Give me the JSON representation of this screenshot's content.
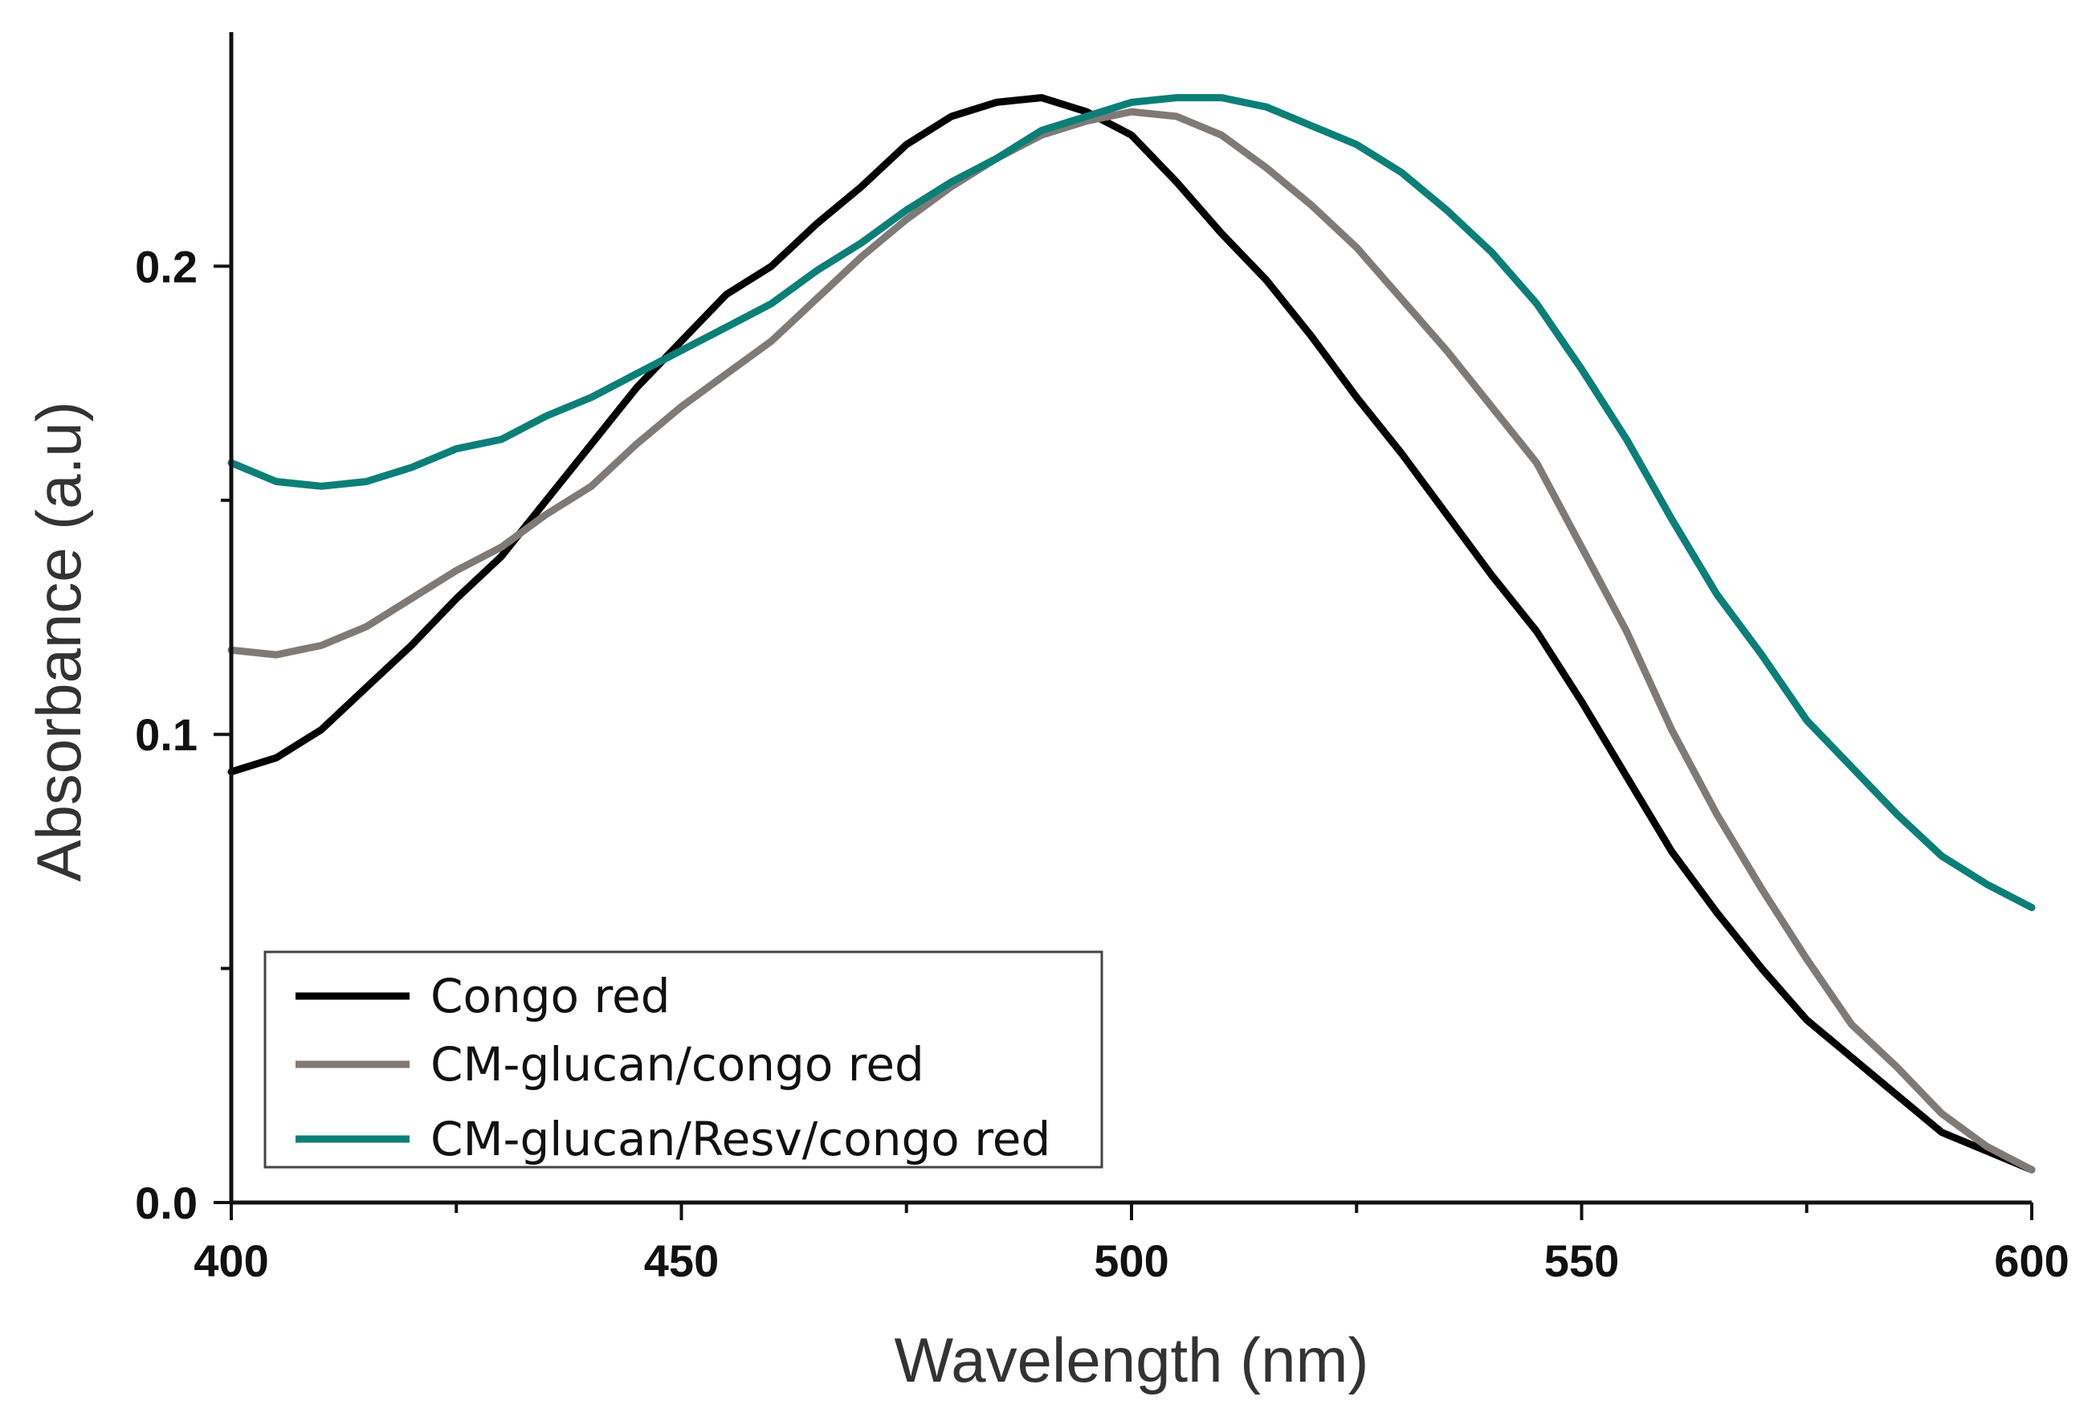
{
  "chart_data": {
    "type": "line",
    "title": "",
    "xlabel": "Wavelength (nm)",
    "ylabel": "Absorbance (a.u)",
    "xlim": [
      400,
      600
    ],
    "ylim": [
      0.0,
      0.25
    ],
    "x_ticks": [
      400,
      450,
      500,
      550,
      600
    ],
    "x_tick_labels": [
      "400",
      "450",
      "500",
      "550",
      "600"
    ],
    "y_ticks": [
      0.0,
      0.1,
      0.2
    ],
    "y_tick_labels": [
      "0.0",
      "0.1",
      "0.2"
    ],
    "grid": false,
    "legend_position": "bottom-left",
    "series": [
      {
        "name": "Congo red",
        "color": "#000000",
        "x": [
          400,
          405,
          410,
          415,
          420,
          425,
          430,
          435,
          440,
          445,
          450,
          455,
          460,
          465,
          470,
          475,
          480,
          485,
          490,
          495,
          500,
          505,
          510,
          515,
          520,
          525,
          530,
          535,
          540,
          545,
          550,
          555,
          560,
          565,
          570,
          575,
          580,
          585,
          590,
          595,
          600
        ],
        "y": [
          0.092,
          0.095,
          0.101,
          0.11,
          0.119,
          0.129,
          0.138,
          0.15,
          0.162,
          0.174,
          0.184,
          0.194,
          0.2,
          0.209,
          0.217,
          0.226,
          0.232,
          0.235,
          0.236,
          0.233,
          0.228,
          0.218,
          0.207,
          0.197,
          0.185,
          0.172,
          0.16,
          0.147,
          0.134,
          0.122,
          0.107,
          0.091,
          0.075,
          0.062,
          0.05,
          0.039,
          0.031,
          0.023,
          0.015,
          0.011,
          0.007
        ]
      },
      {
        "name": "CM-glucan/congo red",
        "color": "#807a76",
        "x": [
          400,
          405,
          410,
          415,
          420,
          425,
          430,
          435,
          440,
          445,
          450,
          455,
          460,
          465,
          470,
          475,
          480,
          485,
          490,
          495,
          500,
          505,
          510,
          515,
          520,
          525,
          530,
          535,
          540,
          545,
          550,
          555,
          560,
          565,
          570,
          575,
          580,
          585,
          590,
          595,
          600
        ],
        "y": [
          0.118,
          0.117,
          0.119,
          0.123,
          0.129,
          0.135,
          0.14,
          0.147,
          0.153,
          0.162,
          0.17,
          0.177,
          0.184,
          0.193,
          0.202,
          0.21,
          0.217,
          0.223,
          0.228,
          0.231,
          0.233,
          0.232,
          0.228,
          0.221,
          0.213,
          0.204,
          0.193,
          0.182,
          0.17,
          0.158,
          0.14,
          0.122,
          0.101,
          0.083,
          0.067,
          0.052,
          0.038,
          0.029,
          0.019,
          0.012,
          0.007
        ]
      },
      {
        "name": "CM-glucan/Resv/congo red",
        "color": "#0a7f78",
        "x": [
          400,
          405,
          410,
          415,
          420,
          425,
          430,
          435,
          440,
          445,
          450,
          455,
          460,
          465,
          470,
          475,
          480,
          485,
          490,
          495,
          500,
          505,
          510,
          515,
          520,
          525,
          530,
          535,
          540,
          545,
          550,
          555,
          560,
          565,
          570,
          575,
          580,
          585,
          590,
          595,
          600
        ],
        "y": [
          0.158,
          0.154,
          0.153,
          0.154,
          0.157,
          0.161,
          0.163,
          0.168,
          0.172,
          0.177,
          0.182,
          0.187,
          0.192,
          0.199,
          0.205,
          0.212,
          0.218,
          0.223,
          0.229,
          0.232,
          0.235,
          0.236,
          0.236,
          0.234,
          0.23,
          0.226,
          0.22,
          0.212,
          0.203,
          0.192,
          0.178,
          0.163,
          0.146,
          0.13,
          0.117,
          0.103,
          0.093,
          0.083,
          0.074,
          0.068,
          0.063
        ]
      }
    ]
  }
}
